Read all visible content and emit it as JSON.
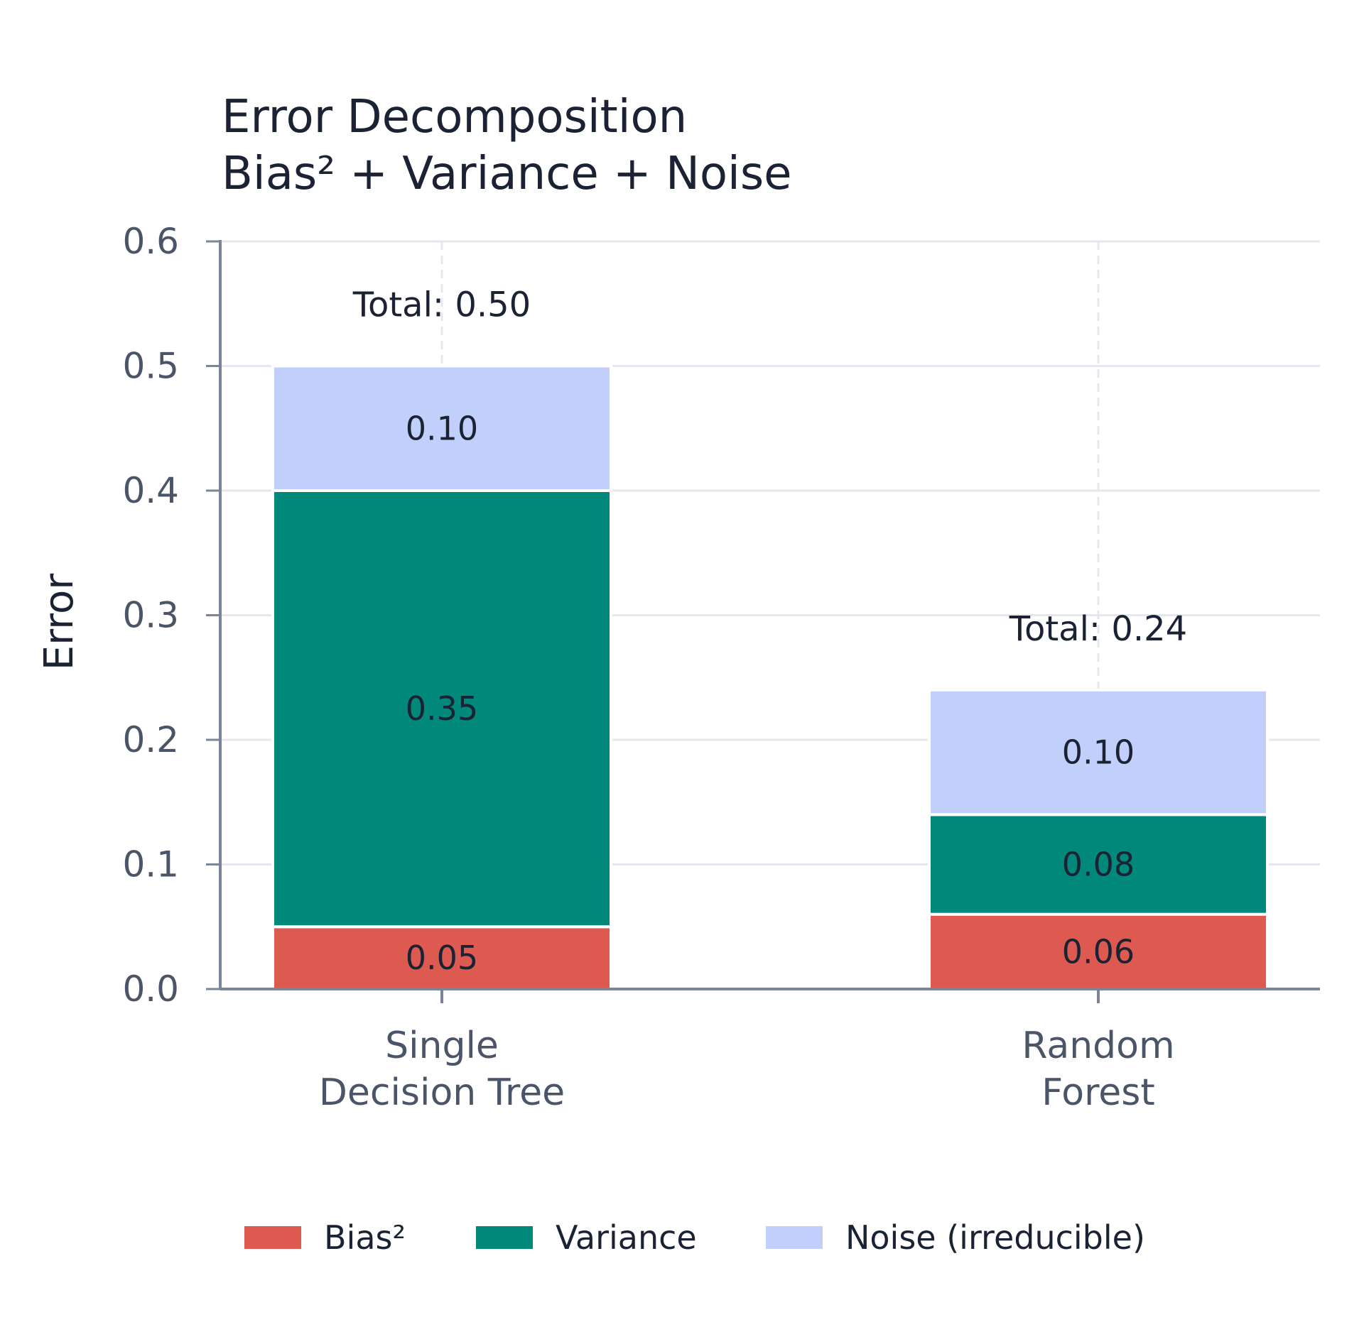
{
  "chart_data": {
    "type": "bar",
    "stacked": true,
    "title_line1": "Error Decomposition",
    "title_line2": "Bias² + Variance + Noise",
    "ylabel": "Error",
    "xlabel": "",
    "ylim": [
      0,
      0.6
    ],
    "yticks": [
      "0.0",
      "0.1",
      "0.2",
      "0.3",
      "0.4",
      "0.5",
      "0.6"
    ],
    "categories": [
      [
        "Single",
        "Decision Tree"
      ],
      [
        "Random",
        "Forest"
      ]
    ],
    "series": [
      {
        "name": "Bias²",
        "color": "#dc5a4f",
        "values": [
          0.05,
          0.06
        ],
        "labels": [
          "0.05",
          "0.06"
        ]
      },
      {
        "name": "Variance",
        "color": "#00897b",
        "values": [
          0.35,
          0.08
        ],
        "labels": [
          "0.35",
          "0.08"
        ]
      },
      {
        "name": "Noise (irreducible)",
        "color": "#c0d0fb",
        "values": [
          0.1,
          0.1
        ],
        "labels": [
          "0.10",
          "0.10"
        ]
      }
    ],
    "totals": [
      "Total: 0.50",
      "Total: 0.24"
    ],
    "grid": true,
    "legend_position": "bottom"
  }
}
